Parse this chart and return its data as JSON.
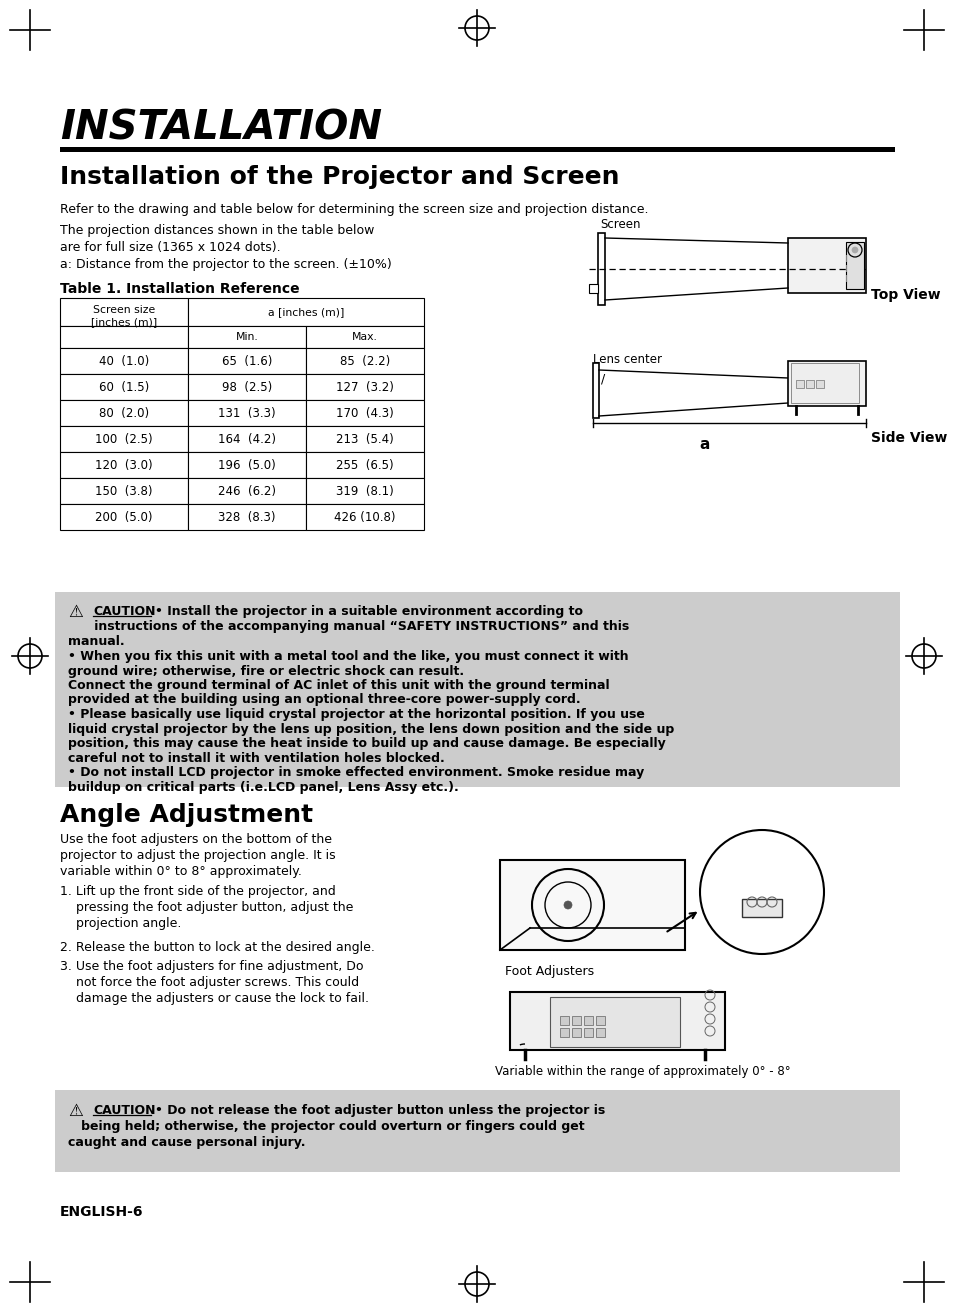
{
  "page_bg": "#ffffff",
  "title_main": "INSTALLATION",
  "section1_title": "Installation of the Projector and Screen",
  "intro_text": "Refer to the drawing and table below for determining the screen size and projection distance.",
  "left_texts": [
    "The projection distances shown in the table below",
    "are for full size (1365 x 1024 dots).",
    "a: Distance from the projector to the screen. (±10%)"
  ],
  "table_title": "Table 1. Installation Reference",
  "table_col1": [
    "40  (1.0)",
    "60  (1.5)",
    "80  (2.0)",
    "100  (2.5)",
    "120  (3.0)",
    "150  (3.8)",
    "200  (5.0)"
  ],
  "table_col2": [
    "65  (1.6)",
    "98  (2.5)",
    "131  (3.3)",
    "164  (4.2)",
    "196  (5.0)",
    "246  (6.2)",
    "328  (8.3)"
  ],
  "table_col3": [
    "85  (2.2)",
    "127  (3.2)",
    "170  (4.3)",
    "213  (5.4)",
    "255  (6.5)",
    "319  (8.1)",
    "426 (10.8)"
  ],
  "caution1_bold_lines": [
    "• Install the projector in a suitable environment according to",
    "   instructions of the accompanying manual “SAFETY INSTRUCTIONS” and this",
    "manual."
  ],
  "caution1_normal_lines": [
    "• When you fix this unit with a metal tool and the like, you must connect it with",
    "ground wire; otherwise, fire or electric shock can result.",
    "Connect the ground terminal of AC inlet of this unit with the ground terminal",
    "provided at the building using an optional three-core power-supply cord.",
    "• Please basically use liquid crystal projector at the horizontal position. If you use",
    "liquid crystal projector by the lens up position, the lens down position and the side up",
    "position, this may cause the heat inside to build up and cause damage. Be especially",
    "careful not to install it with ventilation holes blocked.",
    "• Do not install LCD projector in smoke effected environment. Smoke residue may",
    "buildup on critical parts (i.e.LCD panel, Lens Assy etc.)."
  ],
  "section2_title": "Angle Adjustment",
  "angle_intro_lines": [
    "Use the foot adjusters on the bottom of the",
    "projector to adjust the projection angle. It is",
    "variable within 0° to 8° approximately."
  ],
  "step1_lines": [
    "1. Lift up the front side of the projector, and",
    "    pressing the foot adjuster button, adjust the",
    "    projection angle."
  ],
  "step2": "2. Release the button to lock at the desired angle.",
  "step3_lines": [
    "3. Use the foot adjusters for fine adjustment, Do",
    "    not force the foot adjuster screws. This could",
    "    damage the adjusters or cause the lock to fail."
  ],
  "foot_label": "Foot Adjusters",
  "var_range_label": "Variable within the range of approximately 0° - 8°",
  "caution2_line1": "• Do not release the foot adjuster button unless the projector is",
  "caution2_line2": "   being held; otherwise, the projector could overturn or fingers could get",
  "caution2_line3": "caught and cause personal injury.",
  "footer": "ENGLISH-6"
}
